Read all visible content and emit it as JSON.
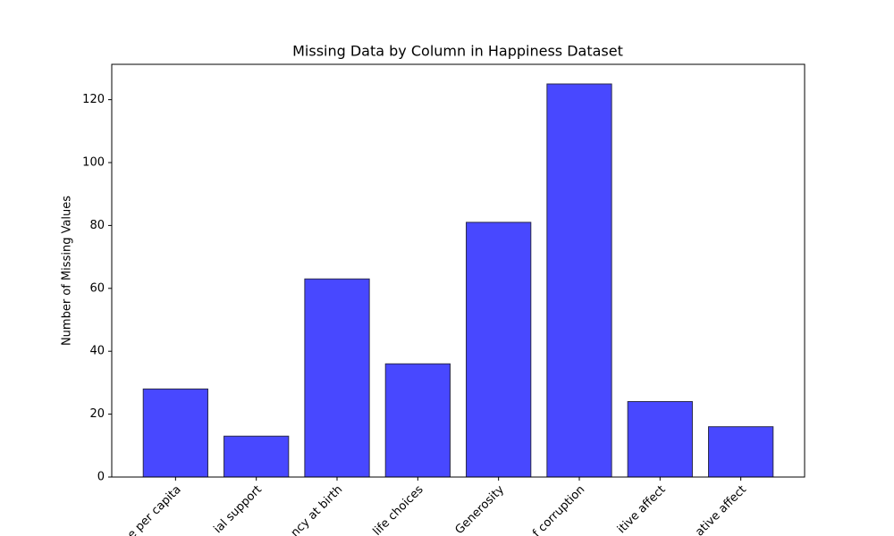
{
  "chart_data": {
    "type": "bar",
    "title": "Missing Data by Column in Happiness Dataset",
    "y_label": "Number of Missing Values",
    "categories": [
      "e per capita",
      "ial support",
      "ncy at birth",
      "life choices",
      "Generosity",
      "f corruption",
      "itive affect",
      "ative affect"
    ],
    "values": [
      28,
      13,
      63,
      36,
      81,
      125,
      24,
      16
    ],
    "color": "#4848ff",
    "edge_color": "#2a2a4a",
    "ylim": [
      0,
      131.25
    ],
    "yticks": [
      0,
      20,
      40,
      60,
      80,
      100,
      120
    ],
    "grid": false
  }
}
